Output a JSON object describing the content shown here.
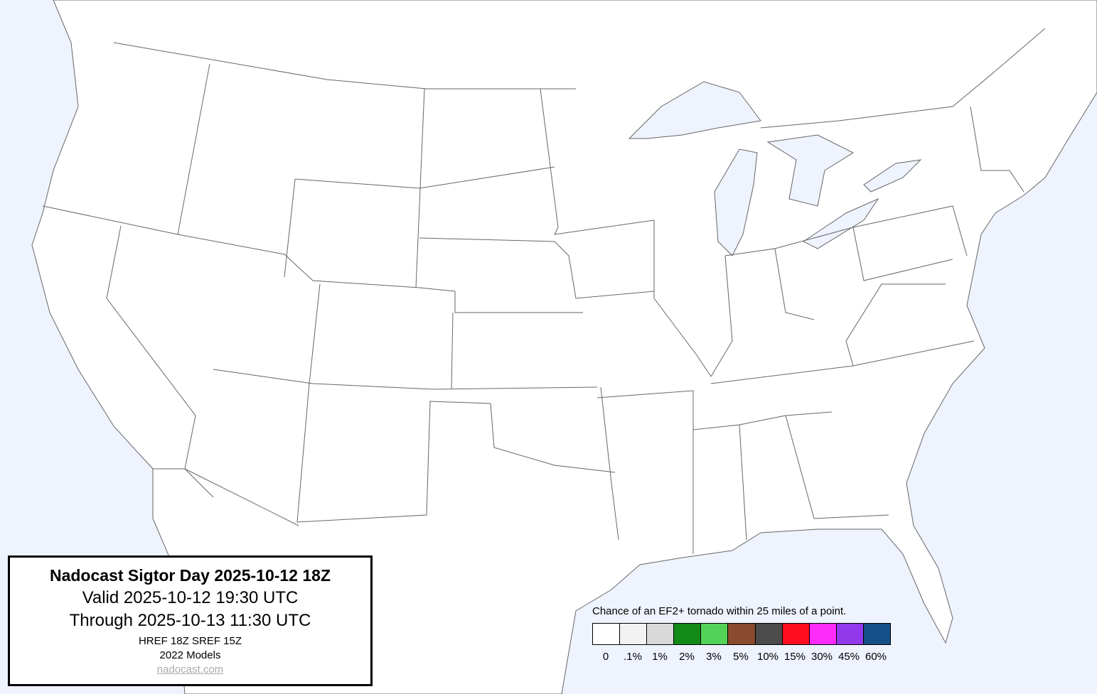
{
  "info": {
    "title": "Nadocast Sigtor Day 2025-10-12 18Z",
    "valid": "Valid 2025-10-12 19:30 UTC",
    "through": "Through 2025-10-13 11:30 UTC",
    "models_run": "HREF 18Z SREF 15Z",
    "models_version": "2022 Models",
    "link": "nadocast.com"
  },
  "legend": {
    "caption": "Chance of an EF2+ tornado within 25 miles of a point.",
    "bins": [
      {
        "label": "0",
        "color": "#ffffff"
      },
      {
        "label": ".1%",
        "color": "#f2f2f2"
      },
      {
        "label": "1%",
        "color": "#d9d9d9"
      },
      {
        "label": "2%",
        "color": "#118a17"
      },
      {
        "label": "3%",
        "color": "#53d258"
      },
      {
        "label": "5%",
        "color": "#8a4a2d"
      },
      {
        "label": "10%",
        "color": "#4b4b4b"
      },
      {
        "label": "15%",
        "color": "#ff0d1e"
      },
      {
        "label": "30%",
        "color": "#ff2bfb"
      },
      {
        "label": "45%",
        "color": "#9339ec"
      },
      {
        "label": "60%",
        "color": "#154f8a"
      }
    ]
  },
  "colors": {
    "water": "#eef3fe",
    "land": "#ffffff",
    "borders": "#555555"
  }
}
